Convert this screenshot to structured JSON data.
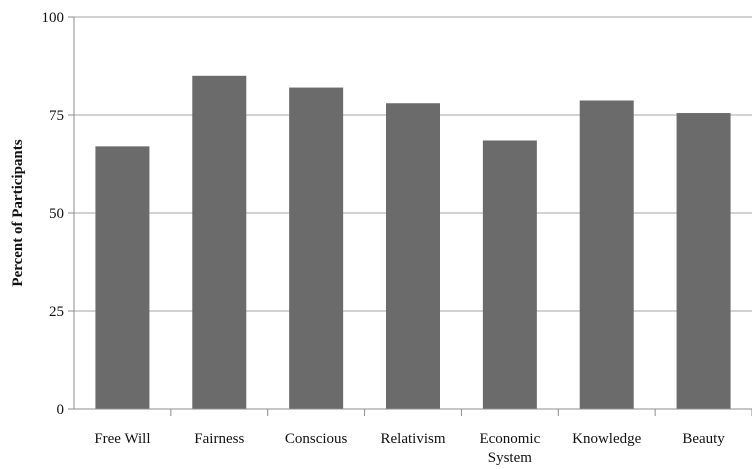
{
  "chart_data": {
    "type": "bar",
    "title": "",
    "xlabel": "",
    "ylabel": "Percent of Participants",
    "categories": [
      [
        "Free Will"
      ],
      [
        "Fairness"
      ],
      [
        "Conscious"
      ],
      [
        "Relativism"
      ],
      [
        "Economic",
        "System"
      ],
      [
        "Knowledge"
      ],
      [
        "Beauty"
      ]
    ],
    "values": [
      67,
      85,
      82,
      78,
      68.5,
      78.7,
      75.5
    ],
    "ylim": [
      0,
      100
    ],
    "yticks": [
      0,
      25,
      50,
      75,
      100
    ],
    "grid": true,
    "legend": "none",
    "colors": {
      "bar": "#6b6b6b",
      "grid": "#a6a6a6",
      "axis": "#8c8c8c"
    }
  }
}
